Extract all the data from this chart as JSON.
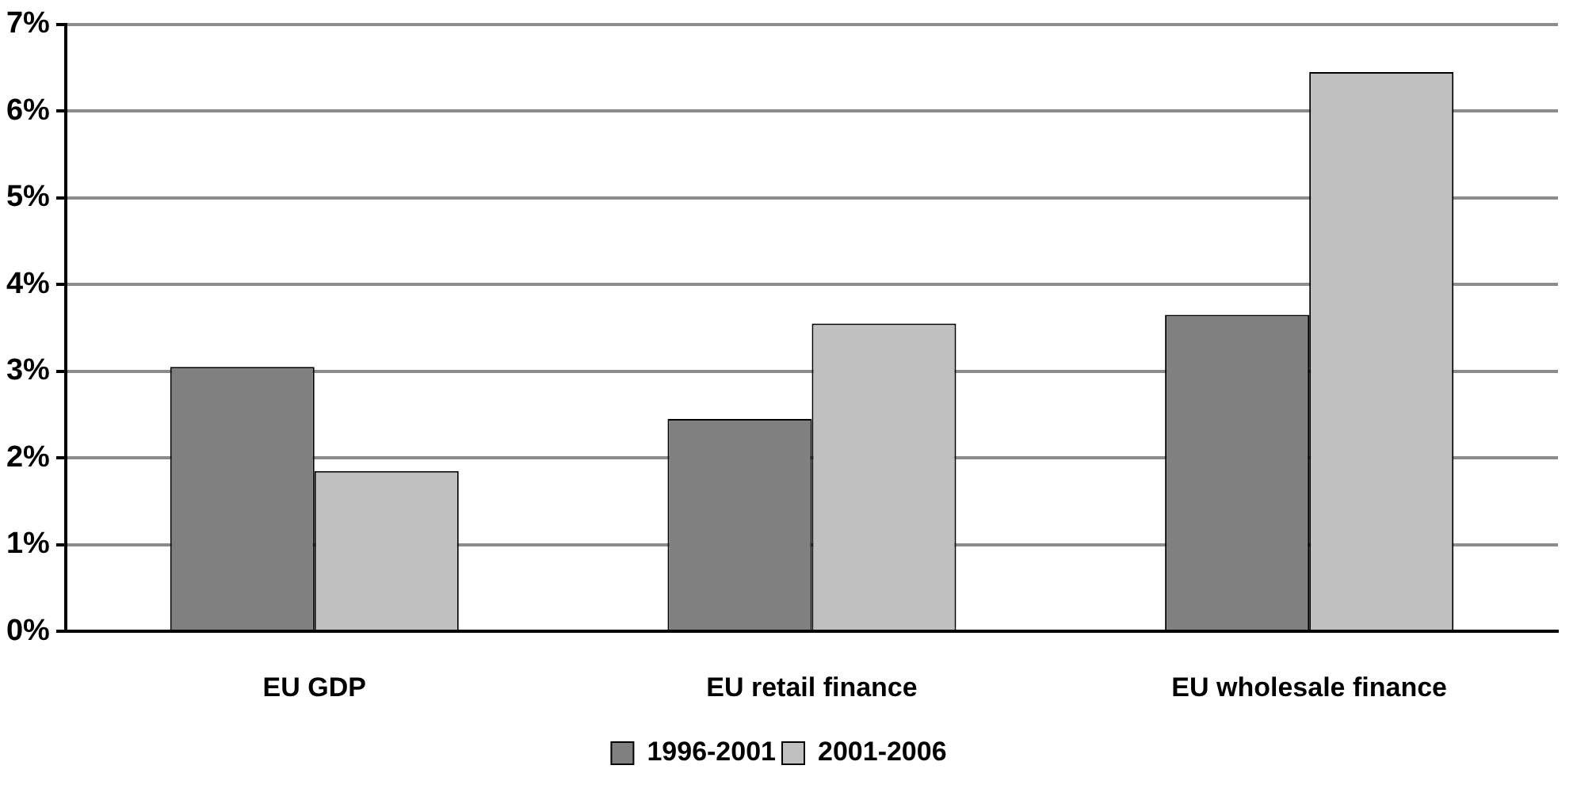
{
  "chart_data": {
    "type": "bar",
    "categories": [
      "EU GDP",
      "EU retail finance",
      "EU wholesale finance"
    ],
    "series": [
      {
        "name": "1996-2001",
        "color": "#808080",
        "values": [
          3.05,
          2.45,
          3.65
        ]
      },
      {
        "name": "2001-2006",
        "color": "#c0c0c0",
        "values": [
          1.85,
          3.55,
          6.45
        ]
      }
    ],
    "ylim": [
      0,
      7
    ],
    "yticks": [
      {
        "value": 0,
        "label": "0%"
      },
      {
        "value": 1,
        "label": "1%"
      },
      {
        "value": 2,
        "label": "2%"
      },
      {
        "value": 3,
        "label": "3%"
      },
      {
        "value": 4,
        "label": "4%"
      },
      {
        "value": 5,
        "label": "5%"
      },
      {
        "value": 6,
        "label": "6%"
      },
      {
        "value": 7,
        "label": "7%"
      }
    ],
    "grid": "y",
    "legend": "bottom"
  }
}
